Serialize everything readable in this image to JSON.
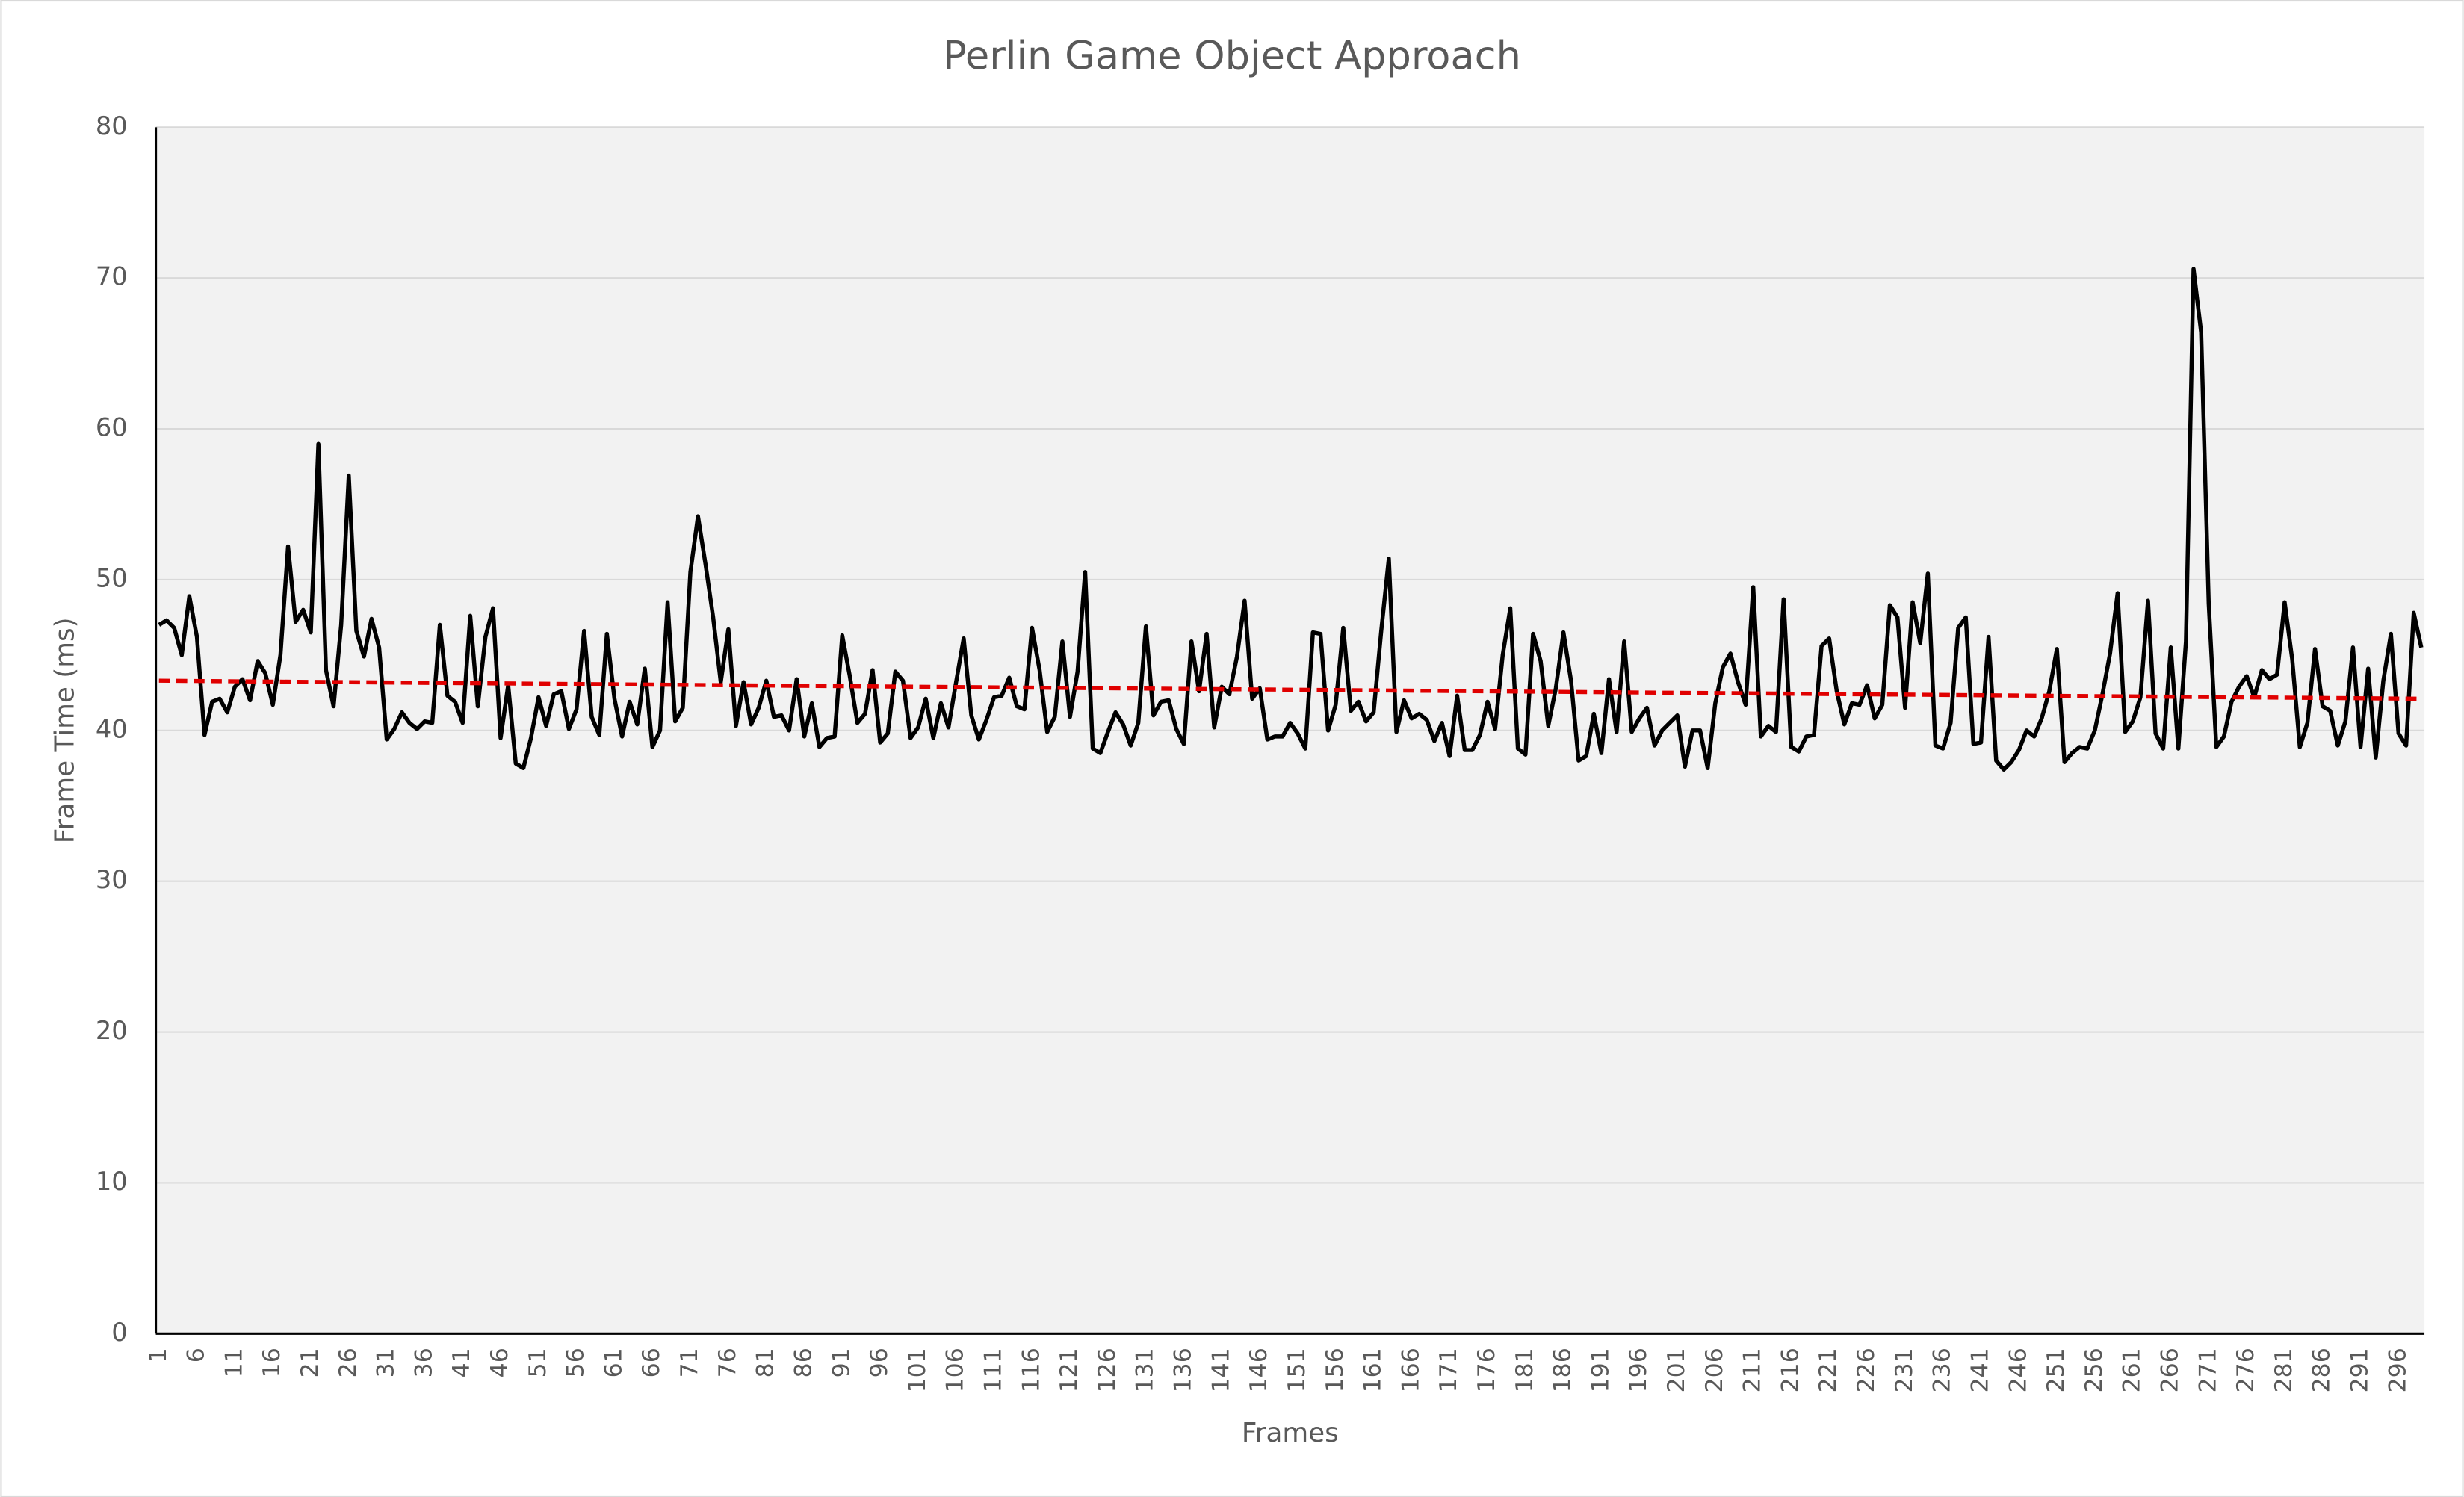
{
  "chart_data": {
    "type": "line",
    "title": "Perlin Game Object Approach",
    "x_label": "Frames",
    "y_label": "Frame Time (ms)",
    "ylim": [
      0,
      80
    ],
    "yticks": [
      0,
      10,
      20,
      30,
      40,
      50,
      60,
      70,
      80
    ],
    "grid": true,
    "categories": [
      "1",
      null,
      null,
      null,
      null,
      "6",
      null,
      null,
      null,
      null,
      "11",
      null,
      null,
      null,
      null,
      "16",
      null,
      null,
      null,
      null,
      "21",
      null,
      null,
      null,
      null,
      "26",
      null,
      null,
      null,
      null,
      "31",
      null,
      null,
      null,
      null,
      "36",
      null,
      null,
      null,
      null,
      "41",
      null,
      null,
      null,
      null,
      "46",
      null,
      null,
      null,
      null,
      "51",
      null,
      null,
      null,
      null,
      "56",
      null,
      null,
      null,
      null,
      "61",
      null,
      null,
      null,
      null,
      "66",
      null,
      null,
      null,
      null,
      "71",
      null,
      null,
      null,
      null,
      "76",
      null,
      null,
      null,
      null,
      "81",
      null,
      null,
      null,
      null,
      "86",
      null,
      null,
      null,
      null,
      "91",
      null,
      null,
      null,
      null,
      "96",
      null,
      null,
      null,
      null,
      "101",
      null,
      null,
      null,
      null,
      "106",
      null,
      null,
      null,
      null,
      "111",
      null,
      null,
      null,
      null,
      "116",
      null,
      null,
      null,
      null,
      "121",
      null,
      null,
      null,
      null,
      "126",
      null,
      null,
      null,
      null,
      "131",
      null,
      null,
      null,
      null,
      "136",
      null,
      null,
      null,
      null,
      "141",
      null,
      null,
      null,
      null,
      "146",
      null,
      null,
      null,
      null,
      "151",
      null,
      null,
      null,
      null,
      "156",
      null,
      null,
      null,
      null,
      "161",
      null,
      null,
      null,
      null,
      "166",
      null,
      null,
      null,
      null,
      "171",
      null,
      null,
      null,
      null,
      "176",
      null,
      null,
      null,
      null,
      "181",
      null,
      null,
      null,
      null,
      "186",
      null,
      null,
      null,
      null,
      "191",
      null,
      null,
      null,
      null,
      "196",
      null,
      null,
      null,
      null,
      "201",
      null,
      null,
      null,
      null,
      "206",
      null,
      null,
      null,
      null,
      "211",
      null,
      null,
      null,
      null,
      "216",
      null,
      null,
      null,
      null,
      "221",
      null,
      null,
      null,
      null,
      "226",
      null,
      null,
      null,
      null,
      "231",
      null,
      null,
      null,
      null,
      "236",
      null,
      null,
      null,
      null,
      "241",
      null,
      null,
      null,
      null,
      "246",
      null,
      null,
      null,
      null,
      "251",
      null,
      null,
      null,
      null,
      "256",
      null,
      null,
      null,
      null,
      "261",
      null,
      null,
      null,
      null,
      "266",
      null,
      null,
      null,
      null,
      "271",
      null,
      null,
      null,
      null,
      "276",
      null,
      null,
      null,
      null,
      "281",
      null,
      null,
      null,
      null,
      "286",
      null,
      null,
      null,
      null,
      "291",
      null,
      null,
      null,
      null,
      "296",
      null,
      null,
      null
    ],
    "series": [
      {
        "color": "#000000",
        "values": [
          47,
          47.3,
          46.8,
          45,
          48.9,
          46.2,
          39.7,
          41.9,
          42.1,
          41.2,
          42.9,
          43.4,
          42,
          44.6,
          43.8,
          41.7,
          45,
          52.2,
          47.2,
          48,
          46.5,
          59,
          44,
          41.6,
          47,
          56.9,
          46.6,
          44.9,
          47.4,
          45.5,
          39.4,
          40.1,
          41.2,
          40.5,
          40.1,
          40.6,
          40.5,
          47,
          42.3,
          41.9,
          40.5,
          47.6,
          41.6,
          46.2,
          48.1,
          39.5,
          43,
          37.8,
          37.5,
          39.5,
          42.2,
          40.3,
          42.4,
          42.6,
          40.1,
          41.4,
          46.6,
          40.9,
          39.7,
          46.4,
          42.1,
          39.6,
          41.9,
          40.4,
          44.1,
          38.9,
          40,
          48.5,
          40.6,
          41.5,
          50.5,
          54.2,
          51,
          47.5,
          43.2,
          46.7,
          40.3,
          43.2,
          40.4,
          41.5,
          43.3,
          40.9,
          41,
          40,
          43.4,
          39.6,
          41.8,
          38.9,
          39.5,
          39.6,
          46.3,
          43.6,
          40.5,
          41.1,
          44,
          39.2,
          39.8,
          43.9,
          43.3,
          39.5,
          40.2,
          42.1,
          39.5,
          41.8,
          40.2,
          43.2,
          46.1,
          41,
          39.4,
          40.7,
          42.2,
          42.3,
          43.5,
          41.6,
          41.4,
          46.8,
          44,
          39.9,
          40.9,
          45.9,
          40.9,
          43.9,
          50.5,
          38.8,
          38.5,
          39.9,
          41.2,
          40.4,
          39,
          40.5,
          46.9,
          41,
          41.9,
          42,
          40.1,
          39.1,
          45.9,
          42.6,
          46.4,
          40.2,
          42.9,
          42.4,
          44.9,
          48.6,
          42.1,
          42.8,
          39.4,
          39.6,
          39.6,
          40.5,
          39.8,
          38.8,
          46.5,
          46.4,
          40,
          41.7,
          46.8,
          41.3,
          41.9,
          40.6,
          41.2,
          46.6,
          51.4,
          39.9,
          42,
          40.8,
          41.1,
          40.7,
          39.3,
          40.5,
          38.3,
          42.3,
          38.7,
          38.7,
          39.7,
          41.9,
          40.1,
          45,
          48.1,
          38.8,
          38.4,
          46.4,
          44.6,
          40.3,
          42.8,
          46.5,
          43.3,
          38,
          38.3,
          41.1,
          38.5,
          43.4,
          39.9,
          45.9,
          39.9,
          40.8,
          41.5,
          39,
          40,
          40.5,
          41,
          37.6,
          40,
          40,
          37.5,
          41.8,
          44.2,
          45.1,
          43.2,
          41.7,
          49.5,
          39.6,
          40.3,
          39.9,
          48.7,
          38.9,
          38.6,
          39.6,
          39.7,
          45.6,
          46.1,
          42.6,
          40.4,
          41.8,
          41.7,
          43,
          40.8,
          41.7,
          48.3,
          47.5,
          41.5,
          48.5,
          45.8,
          50.4,
          39,
          38.8,
          40.5,
          46.8,
          47.5,
          39.1,
          39.2,
          46.2,
          38,
          37.4,
          37.9,
          38.7,
          40,
          39.6,
          40.8,
          42.6,
          45.4,
          37.9,
          38.5,
          38.9,
          38.8,
          40,
          42.4,
          45.1,
          49.1,
          39.9,
          40.6,
          42.2,
          48.6,
          39.8,
          38.8,
          45.5,
          38.8,
          45.9,
          70.6,
          66.4,
          48.4,
          38.9,
          39.6,
          41.9,
          42.9,
          43.6,
          42.2,
          44,
          43.4,
          43.7,
          48.5,
          44.7,
          38.9,
          40.5,
          45.4,
          41.6,
          41.3,
          39,
          40.6,
          45.5,
          38.9,
          44.1,
          38.2,
          43.3,
          46.4,
          39.8,
          39,
          47.8,
          45.5
        ]
      }
    ],
    "trendline": {
      "color": "#e00000",
      "values": [
        43.3,
        42.1
      ]
    }
  }
}
